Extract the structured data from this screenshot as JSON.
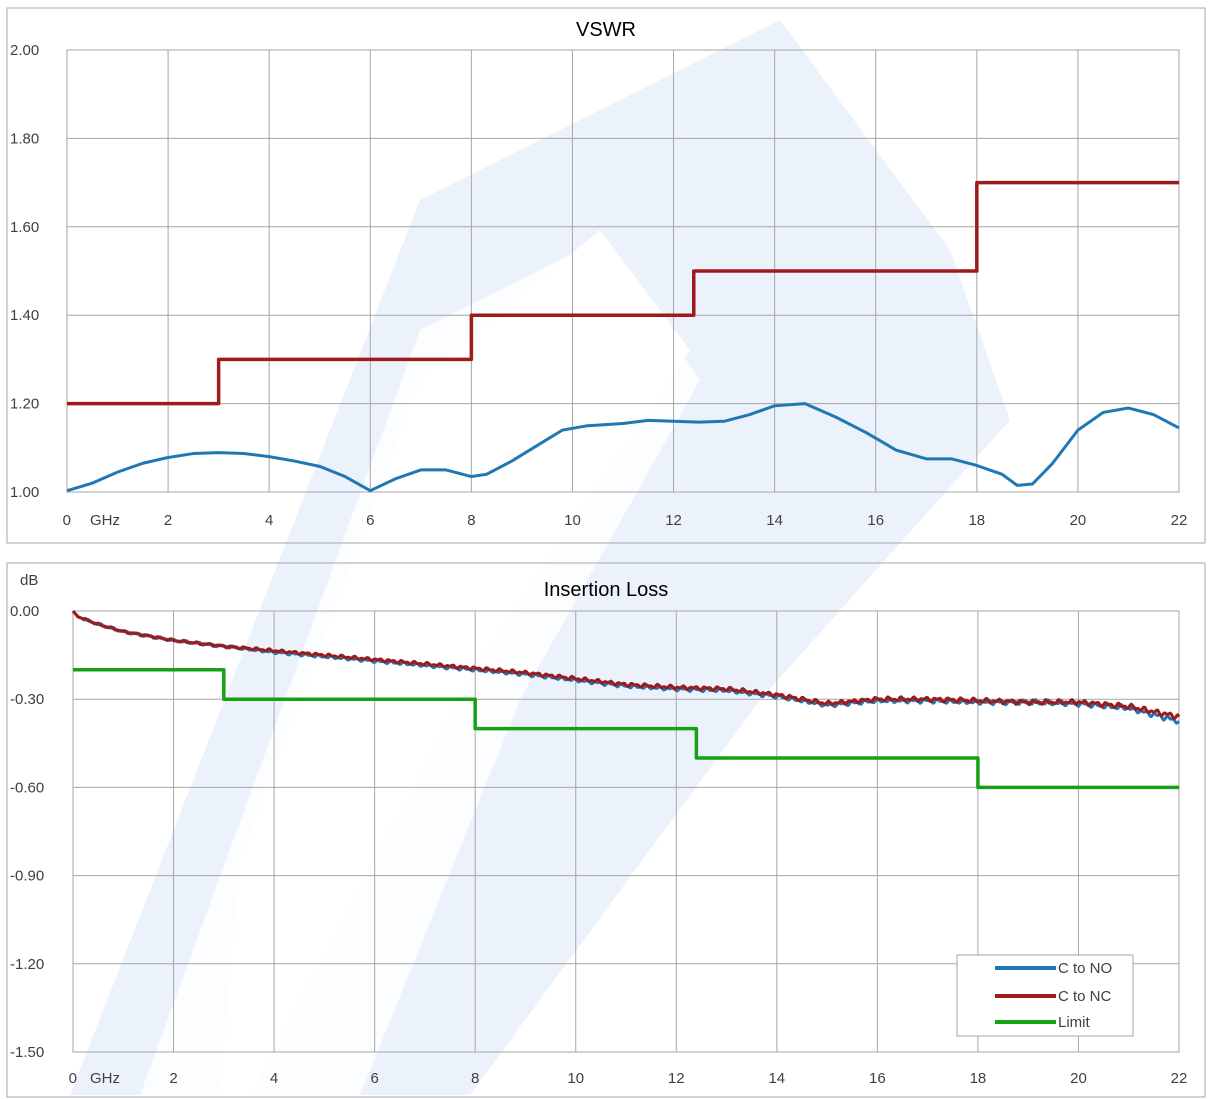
{
  "colors": {
    "c_to_no": "#1f77b4",
    "c_to_nc": "#9e1b1b",
    "limit_vswr": "#9e1b1b",
    "limit_il": "#16a016",
    "grid": "#a6a6a6",
    "watermark": "#dfeaf8"
  },
  "chart_data": [
    {
      "type": "line",
      "title": "VSWR",
      "xlabel": "",
      "ylabel": "",
      "x_unit_label": "GHz",
      "xlim": [
        0,
        22
      ],
      "ylim": [
        1.0,
        2.0
      ],
      "x_ticks": [
        0,
        2,
        4,
        6,
        8,
        10,
        12,
        14,
        16,
        18,
        20,
        22
      ],
      "x_tick_labels": [
        "0",
        "2",
        "4",
        "6",
        "8",
        "10",
        "12",
        "14",
        "16",
        "18",
        "20",
        "22"
      ],
      "y_ticks": [
        1.0,
        1.2,
        1.4,
        1.6,
        1.8,
        2.0
      ],
      "y_tick_labels": [
        "1.00",
        "1.20",
        "1.40",
        "1.60",
        "1.80",
        "2.00"
      ],
      "grid": true,
      "series": [
        {
          "key": "limit",
          "step": true,
          "color_key": "limit_vswr",
          "x": [
            0,
            3,
            3,
            8,
            8,
            12.4,
            12.4,
            18,
            18,
            22
          ],
          "y": [
            1.2,
            1.2,
            1.3,
            1.3,
            1.4,
            1.4,
            1.5,
            1.5,
            1.7,
            1.7
          ]
        },
        {
          "key": "c_to_no",
          "color_key": "c_to_no",
          "x": [
            0,
            0.5,
            1,
            1.5,
            2,
            2.5,
            3,
            3.5,
            4,
            4.5,
            5,
            5.5,
            6,
            6.5,
            7,
            7.5,
            8,
            8.3,
            8.8,
            9.3,
            9.8,
            10.3,
            11,
            11.5,
            12,
            12.5,
            13,
            13.5,
            14,
            14.6,
            15.2,
            15.8,
            16.4,
            17,
            17.5,
            18,
            18.5,
            18.8,
            19.1,
            19.5,
            20,
            20.5,
            21,
            21.5,
            22
          ],
          "y": [
            1.003,
            1.02,
            1.045,
            1.065,
            1.078,
            1.087,
            1.089,
            1.087,
            1.08,
            1.07,
            1.058,
            1.035,
            1.003,
            1.03,
            1.05,
            1.05,
            1.035,
            1.04,
            1.07,
            1.105,
            1.14,
            1.15,
            1.155,
            1.162,
            1.16,
            1.158,
            1.16,
            1.175,
            1.195,
            1.2,
            1.17,
            1.135,
            1.095,
            1.075,
            1.075,
            1.06,
            1.04,
            1.015,
            1.018,
            1.065,
            1.14,
            1.18,
            1.19,
            1.175,
            1.145
          ]
        }
      ]
    },
    {
      "type": "line",
      "title": "Insertion Loss",
      "xlabel": "",
      "ylabel": "dB",
      "x_unit_label": "GHz",
      "xlim": [
        0,
        22
      ],
      "ylim": [
        -1.5,
        0.0
      ],
      "x_ticks": [
        0,
        2,
        4,
        6,
        8,
        10,
        12,
        14,
        16,
        18,
        20,
        22
      ],
      "x_tick_labels": [
        "0",
        "2",
        "4",
        "6",
        "8",
        "10",
        "12",
        "14",
        "16",
        "18",
        "20",
        "22"
      ],
      "y_ticks": [
        0.0,
        -0.3,
        -0.6,
        -0.9,
        -1.2,
        -1.5
      ],
      "y_tick_labels": [
        "0.00",
        "-0.30",
        "-0.60",
        "-0.90",
        "-1.20",
        "-1.50"
      ],
      "grid": true,
      "legend": {
        "position": "bottom-right",
        "entries": [
          {
            "label": "C to NO",
            "color_key": "c_to_no"
          },
          {
            "label": "C to NC",
            "color_key": "c_to_nc"
          },
          {
            "label": "Limit",
            "color_key": "limit_il"
          }
        ]
      },
      "series": [
        {
          "name": "C to NO",
          "color_key": "c_to_no",
          "noisy": true,
          "x": [
            0,
            0.1,
            0.5,
            1,
            2,
            3,
            4,
            5,
            6,
            7,
            8,
            9,
            10,
            11,
            12,
            13,
            14,
            15,
            16,
            17,
            18,
            19,
            20,
            21,
            22
          ],
          "y": [
            0,
            -0.02,
            -0.045,
            -0.07,
            -0.1,
            -0.12,
            -0.14,
            -0.155,
            -0.17,
            -0.185,
            -0.2,
            -0.215,
            -0.235,
            -0.255,
            -0.265,
            -0.27,
            -0.29,
            -0.32,
            -0.305,
            -0.305,
            -0.31,
            -0.31,
            -0.315,
            -0.33,
            -0.375
          ]
        },
        {
          "name": "C to NC",
          "color_key": "c_to_nc",
          "noisy": true,
          "x": [
            0,
            0.1,
            0.5,
            1,
            2,
            3,
            4,
            5,
            6,
            7,
            8,
            9,
            10,
            11,
            12,
            13,
            14,
            15,
            16,
            17,
            18,
            19,
            20,
            21,
            22
          ],
          "y": [
            0,
            -0.02,
            -0.045,
            -0.07,
            -0.1,
            -0.12,
            -0.135,
            -0.15,
            -0.165,
            -0.18,
            -0.195,
            -0.21,
            -0.23,
            -0.25,
            -0.26,
            -0.265,
            -0.285,
            -0.315,
            -0.3,
            -0.3,
            -0.305,
            -0.31,
            -0.31,
            -0.325,
            -0.36
          ]
        },
        {
          "name": "Limit",
          "color_key": "limit_il",
          "step": true,
          "x": [
            0,
            3,
            3,
            8,
            8,
            12.4,
            12.4,
            18,
            18,
            22
          ],
          "y": [
            -0.2,
            -0.2,
            -0.3,
            -0.3,
            -0.4,
            -0.4,
            -0.5,
            -0.5,
            -0.6,
            -0.6
          ]
        }
      ]
    }
  ]
}
